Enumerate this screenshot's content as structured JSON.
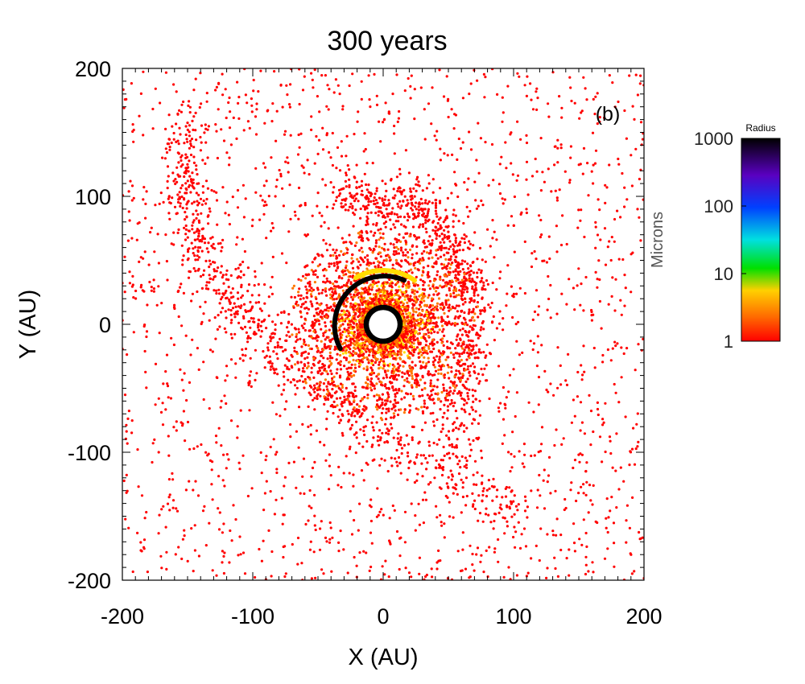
{
  "chart_data": {
    "type": "scatter",
    "title": "300 years",
    "panel_label": "(b)",
    "xlabel": "X (AU)",
    "ylabel": "Y (AU)",
    "xlim": [
      -200,
      200
    ],
    "ylim": [
      -200,
      200
    ],
    "x_ticks": [
      -200,
      -100,
      0,
      100,
      200
    ],
    "y_ticks": [
      -200,
      -100,
      0,
      100,
      200
    ],
    "x_tick_labels": [
      "-200",
      "-100",
      "0",
      "100",
      "200"
    ],
    "y_tick_labels": [
      "-200",
      "-100",
      "0",
      "100",
      "200"
    ],
    "colorbar": {
      "title": "Radius",
      "unit_label": "Microns",
      "scale": "log",
      "range": [
        1,
        1000
      ],
      "ticks": [
        1,
        10,
        100,
        1000
      ],
      "tick_labels": [
        "1",
        "10",
        "100",
        "1000"
      ],
      "colors": [
        "#ff0000",
        "#ff7700",
        "#ffdd00",
        "#00ee00",
        "#00dddd",
        "#0044ff",
        "#6600cc",
        "#000000"
      ]
    },
    "features": {
      "central_hole": {
        "center": [
          0,
          0
        ],
        "radius_au": 11
      },
      "inner_ring": {
        "center": [
          0,
          0
        ],
        "radius_au": 15,
        "grain_radius_microns": 1000
      },
      "black_arc": {
        "radius_au": 38,
        "start_angle_deg": 65,
        "end_angle_deg": 210,
        "grain_radius_microns": 1000
      },
      "green_arc": {
        "radius_au": 42,
        "start_angle_deg": 55,
        "end_angle_deg": 120,
        "grain_radius_microns": 10
      },
      "dense_disk": {
        "inner_radius_au": 15,
        "outer_radius_au": 75,
        "grain_radius_microns": [
          1,
          5
        ]
      },
      "spiral_arms": [
        {
          "from": [
            -40,
            95
          ],
          "through": [
            100,
            120
          ],
          "to": [
            55,
            -95
          ],
          "grain_radius_microns": 1
        },
        {
          "from": [
            -150,
            160
          ],
          "through": [
            -185,
            0
          ],
          "to": [
            110,
            -150
          ],
          "grain_radius_microns": 1
        }
      ],
      "background_halo": {
        "extent_au": 200,
        "grain_radius_microns": 1
      }
    }
  }
}
